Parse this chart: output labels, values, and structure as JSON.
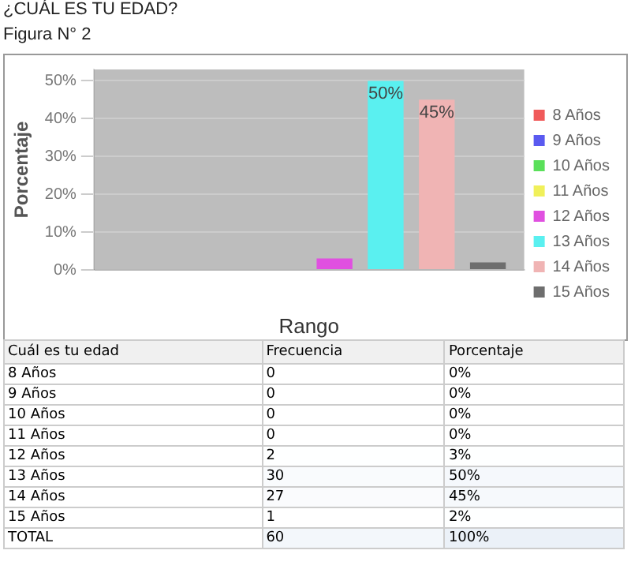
{
  "chart_data": [
    {
      "type": "bar",
      "title": "¿CUÁL ES TU EDAD?",
      "subtitle": "Figura  N° 2",
      "xlabel": "Rango",
      "ylabel": "Porcentaje",
      "categories": [
        null
      ],
      "series": [
        {
          "name": "8 Años",
          "color": "#f05a5a",
          "values": [
            0
          ]
        },
        {
          "name": "9 Años",
          "color": "#5a5af0",
          "values": [
            0
          ]
        },
        {
          "name": "10 Años",
          "color": "#5ae05a",
          "values": [
            0
          ]
        },
        {
          "name": "11 Años",
          "color": "#f0f05a",
          "values": [
            0
          ]
        },
        {
          "name": "12 Años",
          "color": "#e050e0",
          "values": [
            3
          ]
        },
        {
          "name": "13 Años",
          "color": "#5af0f0",
          "values": [
            50
          ],
          "value_labels": [
            "50%"
          ]
        },
        {
          "name": "14 Años",
          "color": "#f0b4b4",
          "values": [
            45
          ],
          "value_labels": [
            "45%"
          ]
        },
        {
          "name": "15 Años",
          "color": "#6e6e6e",
          "values": [
            2
          ]
        }
      ],
      "ylim": [
        0,
        53
      ],
      "yticks": [
        {
          "value": 0,
          "label": "0%"
        },
        {
          "value": 10,
          "label": "10%"
        },
        {
          "value": 20,
          "label": "20%"
        },
        {
          "value": 30,
          "label": "30%"
        },
        {
          "value": 40,
          "label": "40%"
        },
        {
          "value": 50,
          "label": "50%"
        }
      ],
      "grid": "y",
      "legend": "right"
    },
    {
      "type": "heatmap",
      "ylabel": "Cuál es tu edad",
      "categories": [
        "Frecuencia",
        "Porcentaje"
      ],
      "y_categories": [
        "8 Años",
        "9 Años",
        "10 Años",
        "11 Años",
        "12 Años",
        "13 Años",
        "14 Años",
        "15 Años",
        "TOTAL"
      ],
      "cells": [
        [
          0,
          0
        ],
        [
          0,
          0
        ],
        [
          0,
          0
        ],
        [
          0,
          0
        ],
        [
          2,
          3
        ],
        [
          30,
          50
        ],
        [
          27,
          45
        ],
        [
          1,
          2
        ],
        [
          60,
          100
        ]
      ],
      "cell_labels": [
        [
          "0",
          "0%"
        ],
        [
          "0",
          "0%"
        ],
        [
          "0",
          "0%"
        ],
        [
          "0",
          "0%"
        ],
        [
          "2",
          "3%"
        ],
        [
          "30",
          "50%"
        ],
        [
          "27",
          "45%"
        ],
        [
          "1",
          "2%"
        ],
        [
          "60",
          "100%"
        ]
      ]
    }
  ]
}
